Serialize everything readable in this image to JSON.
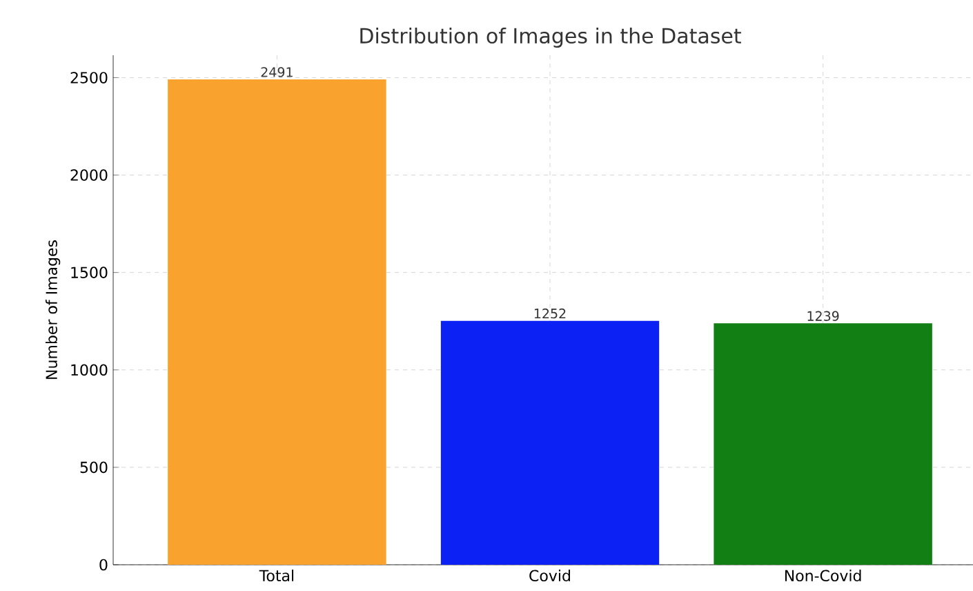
{
  "chart_data": {
    "type": "bar",
    "title": "Distribution of Images in the Dataset",
    "ylabel": "Number of Images",
    "categories": [
      "Total",
      "Covid",
      "Non-Covid"
    ],
    "values": [
      2491,
      1252,
      1239
    ],
    "colors": [
      "#faa22e",
      "#0c22f4",
      "#127f14"
    ],
    "ylim": [
      0,
      2615
    ],
    "yticks": [
      0,
      500,
      1000,
      1500,
      2000,
      2500
    ],
    "grid": true,
    "data_labels": true
  }
}
